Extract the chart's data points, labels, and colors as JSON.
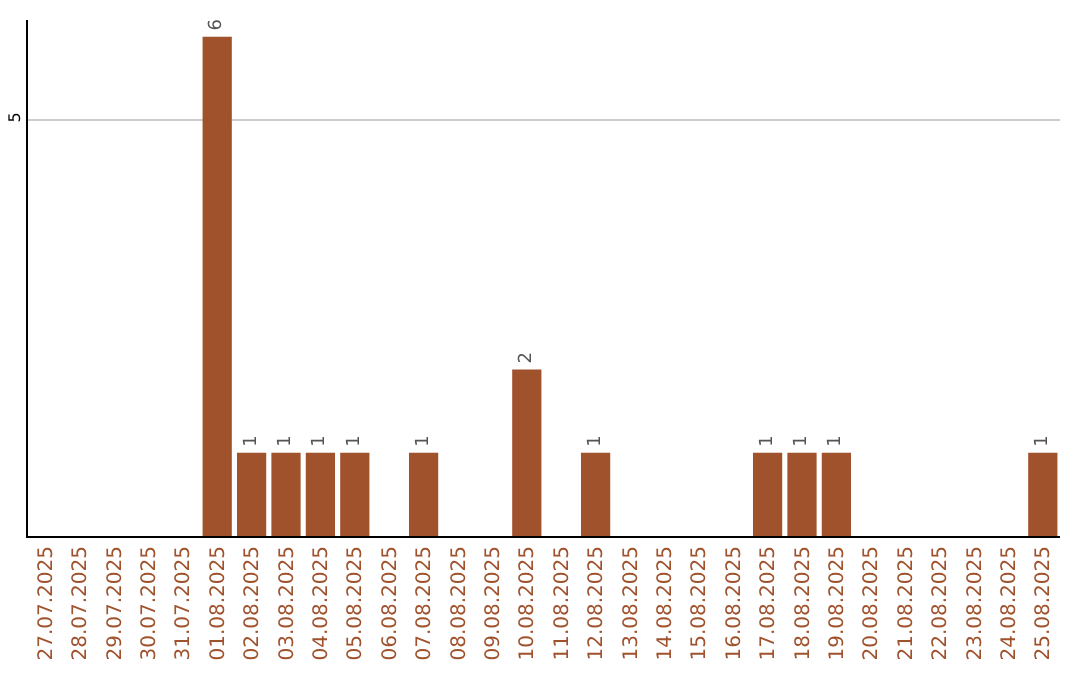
{
  "chart_data": {
    "type": "bar",
    "categories": [
      "27.07.2025",
      "28.07.2025",
      "29.07.2025",
      "30.07.2025",
      "31.07.2025",
      "01.08.2025",
      "02.08.2025",
      "03.08.2025",
      "04.08.2025",
      "05.08.2025",
      "06.08.2025",
      "07.08.2025",
      "08.08.2025",
      "09.08.2025",
      "10.08.2025",
      "11.08.2025",
      "12.08.2025",
      "13.08.2025",
      "14.08.2025",
      "15.08.2025",
      "16.08.2025",
      "17.08.2025",
      "18.08.2025",
      "19.08.2025",
      "20.08.2025",
      "21.08.2025",
      "22.08.2025",
      "23.08.2025",
      "24.08.2025",
      "25.08.2025"
    ],
    "values": [
      0,
      0,
      0,
      0,
      0,
      6,
      1,
      1,
      1,
      1,
      0,
      1,
      0,
      0,
      2,
      0,
      1,
      0,
      0,
      0,
      0,
      1,
      1,
      1,
      0,
      0,
      0,
      0,
      0,
      1
    ],
    "value_labels": [
      null,
      null,
      null,
      null,
      null,
      "6",
      "1",
      "1",
      "1",
      "1",
      null,
      "1",
      null,
      null,
      "2",
      null,
      "1",
      null,
      null,
      null,
      null,
      "1",
      "1",
      "1",
      null,
      null,
      null,
      null,
      null,
      "1"
    ],
    "color": "#a0522d",
    "ylim": [
      0,
      6.2
    ],
    "yticks": [
      5
    ],
    "grid": "y",
    "legend": false
  }
}
